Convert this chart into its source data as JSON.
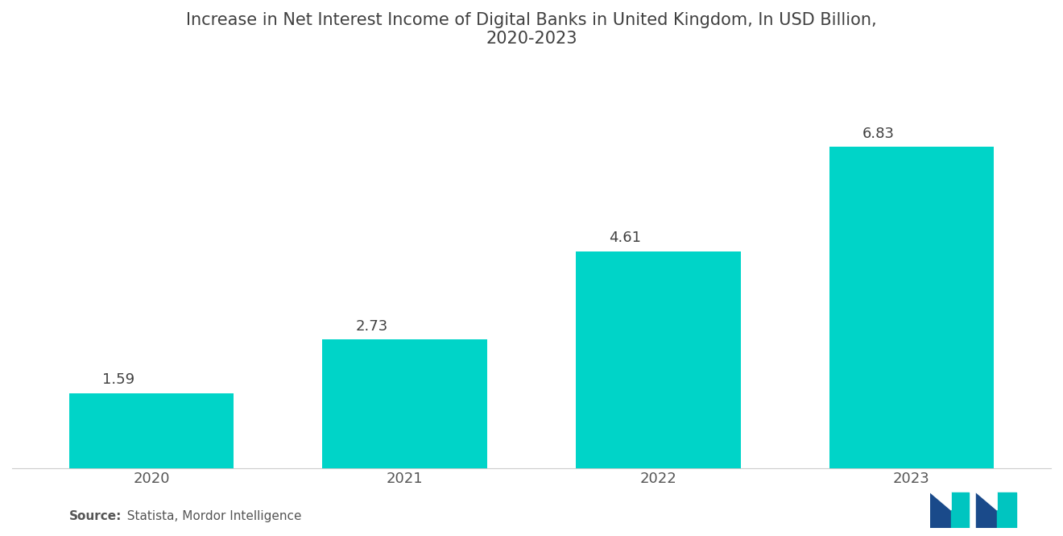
{
  "title": "Increase in Net Interest Income of Digital Banks in United Kingdom, In USD Billion,\n2020-2023",
  "categories": [
    "2020",
    "2021",
    "2022",
    "2023"
  ],
  "values": [
    1.59,
    2.73,
    4.61,
    6.83
  ],
  "bar_color": "#00D4C8",
  "bar_width": 0.65,
  "background_color": "#ffffff",
  "title_fontsize": 15,
  "tick_fontsize": 13,
  "value_fontsize": 13,
  "source_bold": "Source:",
  "source_rest": "  Statista, Mordor Intelligence",
  "source_fontsize": 11,
  "ylim": [
    0,
    8.5
  ],
  "title_color": "#404040",
  "tick_color": "#555555",
  "value_label_color": "#404040",
  "source_label_color": "#555555",
  "xlim_left": -0.55,
  "xlim_right": 3.55
}
